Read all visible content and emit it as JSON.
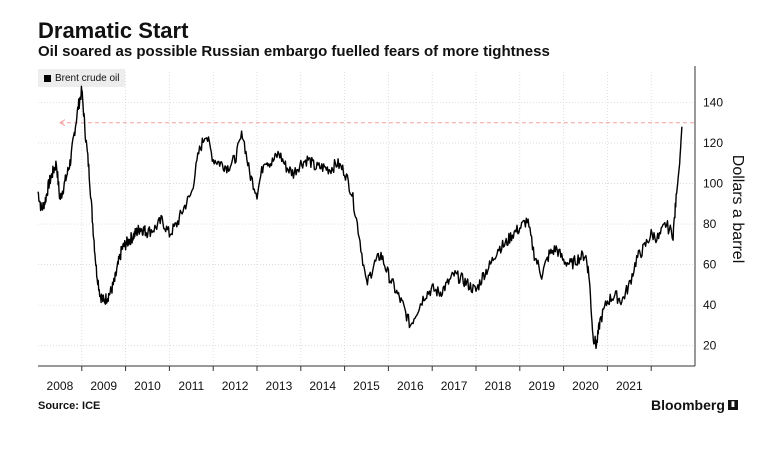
{
  "header": {
    "title": "Dramatic Start",
    "subtitle": "Oil soared as possible Russian embargo fuelled fears of more tightness"
  },
  "footer": {
    "source": "Source: ICE",
    "brand": "Bloomberg",
    "brand_icon": "bloomberg-logo-icon"
  },
  "colors": {
    "line": "#000000",
    "grid": "#d0d0d0",
    "reference": "#f2a0a0"
  },
  "chart_data": {
    "type": "line",
    "title": "Dramatic Start",
    "subtitle": "Oil soared as possible Russian embargo fuelled fears of more tightness",
    "ylabel": "Dollars a barrel",
    "xlabel": "",
    "legend": [
      "Brent crude oil"
    ],
    "legend_position": "top-left",
    "ylim": [
      10,
      155
    ],
    "xlim": [
      2007.5,
      2022.5
    ],
    "yticks": [
      20,
      40,
      60,
      80,
      100,
      120,
      140
    ],
    "xticks": [
      2008,
      2009,
      2010,
      2011,
      2012,
      2013,
      2014,
      2015,
      2016,
      2017,
      2018,
      2019,
      2020,
      2021
    ],
    "xtick_labels": [
      "2008",
      "2009",
      "2010",
      "2011",
      "2012",
      "2013",
      "2014",
      "2015",
      "2016",
      "2017",
      "2018",
      "2019",
      "2020",
      "2021"
    ],
    "grid": true,
    "reference_line": {
      "y": 130,
      "style": "dashed",
      "color": "#f2a0a0"
    },
    "series": [
      {
        "name": "Brent crude oil",
        "x": [
          2007.5,
          2007.58,
          2007.67,
          2007.75,
          2007.83,
          2007.92,
          2008.0,
          2008.08,
          2008.17,
          2008.25,
          2008.33,
          2008.42,
          2008.5,
          2008.58,
          2008.67,
          2008.75,
          2008.83,
          2008.92,
          2009.0,
          2009.08,
          2009.17,
          2009.25,
          2009.33,
          2009.42,
          2009.5,
          2009.58,
          2009.67,
          2009.75,
          2009.83,
          2009.92,
          2010.0,
          2010.17,
          2010.33,
          2010.5,
          2010.67,
          2010.83,
          2011.0,
          2011.17,
          2011.33,
          2011.5,
          2011.67,
          2011.83,
          2012.0,
          2012.17,
          2012.33,
          2012.5,
          2012.67,
          2012.83,
          2013.0,
          2013.17,
          2013.33,
          2013.5,
          2013.67,
          2013.83,
          2014.0,
          2014.17,
          2014.33,
          2014.5,
          2014.67,
          2014.83,
          2015.0,
          2015.17,
          2015.33,
          2015.5,
          2015.67,
          2015.83,
          2016.0,
          2016.17,
          2016.33,
          2016.5,
          2016.67,
          2016.83,
          2017.0,
          2017.17,
          2017.33,
          2017.5,
          2017.67,
          2017.83,
          2018.0,
          2018.17,
          2018.33,
          2018.5,
          2018.67,
          2018.83,
          2019.0,
          2019.17,
          2019.33,
          2019.5,
          2019.67,
          2019.83,
          2020.0,
          2020.08,
          2020.17,
          2020.25,
          2020.33,
          2020.5,
          2020.67,
          2020.83,
          2021.0,
          2021.17,
          2021.33,
          2021.5,
          2021.67,
          2021.83,
          2022.0,
          2022.08,
          2022.15,
          2022.2
        ],
        "values": [
          96,
          87,
          92,
          100,
          105,
          110,
          92,
          98,
          105,
          112,
          125,
          138,
          146,
          125,
          105,
          80,
          58,
          45,
          42,
          44,
          47,
          52,
          60,
          68,
          70,
          72,
          74,
          76,
          78,
          77,
          76,
          78,
          82,
          75,
          80,
          88,
          95,
          115,
          125,
          112,
          110,
          108,
          112,
          125,
          105,
          95,
          112,
          110,
          115,
          108,
          105,
          110,
          112,
          108,
          108,
          107,
          110,
          106,
          95,
          75,
          50,
          60,
          65,
          55,
          47,
          40,
          30,
          38,
          45,
          48,
          46,
          50,
          55,
          53,
          50,
          47,
          55,
          60,
          68,
          70,
          75,
          78,
          82,
          65,
          55,
          65,
          68,
          62,
          60,
          63,
          65,
          55,
          25,
          20,
          32,
          42,
          45,
          42,
          50,
          63,
          68,
          75,
          73,
          80,
          75,
          95,
          110,
          128
        ]
      }
    ]
  }
}
